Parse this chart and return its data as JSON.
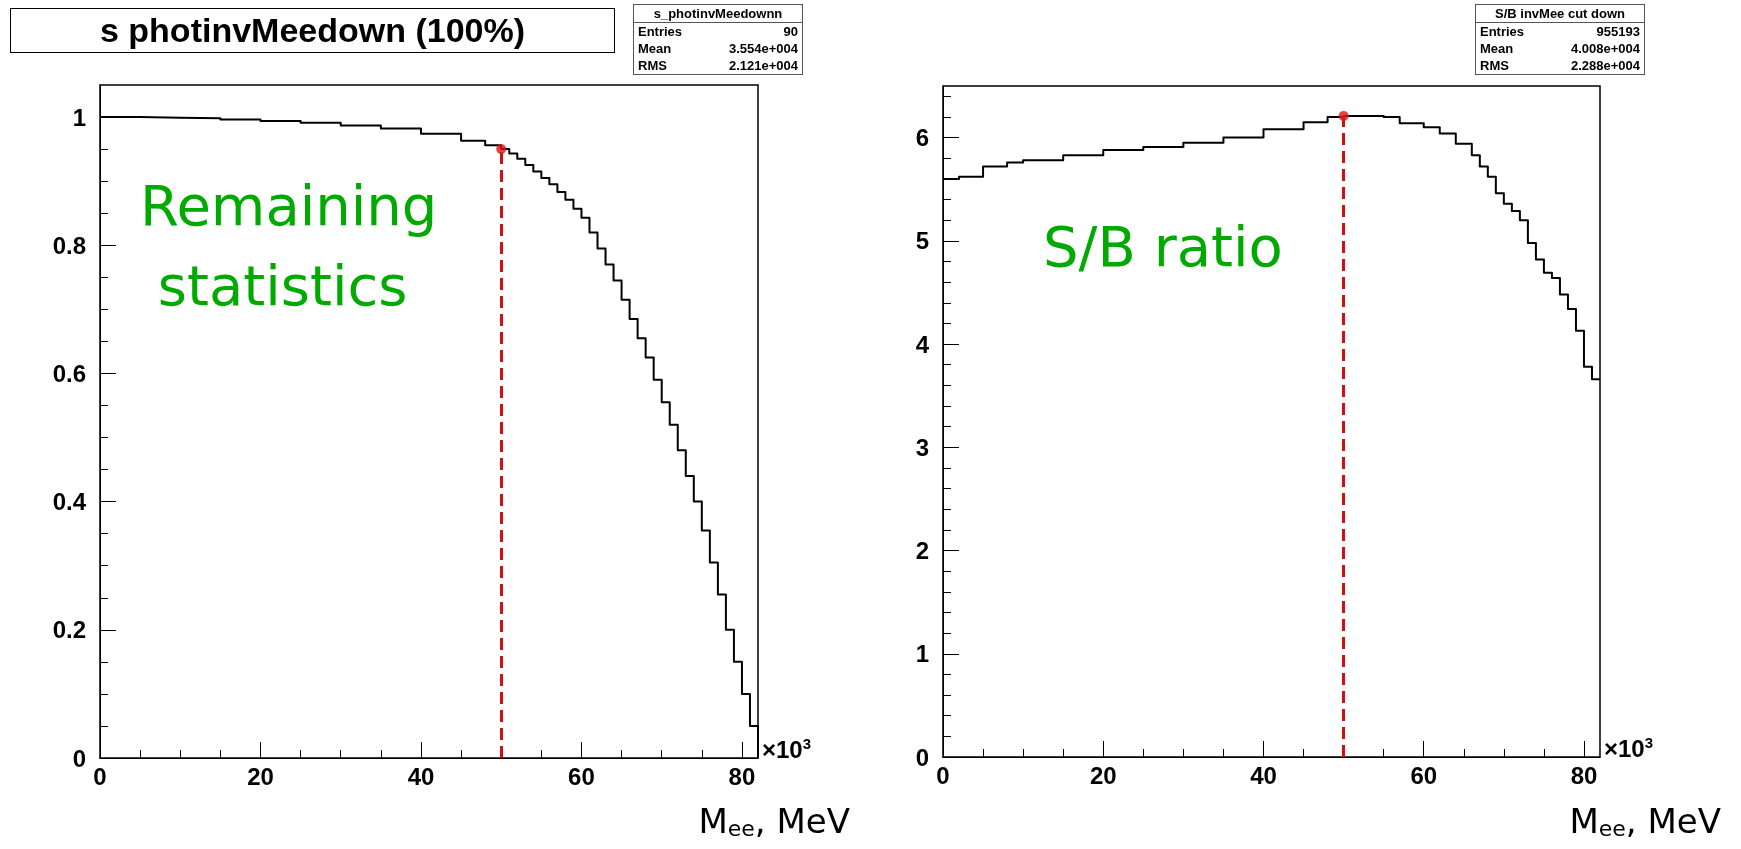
{
  "chart_data": [
    {
      "type": "step",
      "title": "s photinvMeedown (100%)",
      "xlabel": "M$_{ee}$, MeV",
      "xlim": [
        0,
        82
      ],
      "xticks": [
        0,
        20,
        40,
        60,
        80
      ],
      "ylim": [
        0,
        1.05
      ],
      "yticks": [
        0,
        0.2,
        0.4,
        0.6,
        0.8,
        1
      ],
      "series": [
        {
          "color": "#000000",
          "x": [
            0,
            5,
            10,
            15,
            20,
            25,
            30,
            35,
            40,
            45,
            48,
            50,
            51,
            52,
            53,
            54,
            55,
            56,
            57,
            58,
            59,
            60,
            61,
            62,
            63,
            64,
            65,
            66,
            67,
            68,
            69,
            70,
            71,
            72,
            73,
            74,
            75,
            76,
            77,
            78,
            79,
            80,
            81,
            82
          ],
          "values": [
            1.0,
            0.999,
            0.998,
            0.996,
            0.994,
            0.991,
            0.987,
            0.982,
            0.974,
            0.963,
            0.956,
            0.95,
            0.943,
            0.935,
            0.925,
            0.915,
            0.905,
            0.895,
            0.883,
            0.871,
            0.857,
            0.843,
            0.82,
            0.795,
            0.77,
            0.745,
            0.715,
            0.685,
            0.655,
            0.625,
            0.59,
            0.555,
            0.52,
            0.48,
            0.44,
            0.4,
            0.355,
            0.305,
            0.255,
            0.2,
            0.15,
            0.1,
            0.05,
            0
          ]
        },
        {
          "type": "scatter",
          "color": "#e01515",
          "x": [
            50
          ],
          "values": [
            0.95
          ]
        }
      ],
      "ref_lines": [
        {
          "axis": "x",
          "value": 50,
          "color": "#d01010",
          "line_style": "dashed"
        }
      ],
      "annotations": [
        "Remaining statistics",
        "×10$^{3}$",
        "s_photinvMeedownn",
        "Entries",
        "90",
        "Mean",
        "3.554e+004",
        "RMS",
        "2.121e+004"
      ]
    },
    {
      "type": "step",
      "xlabel": "M$_{ee}$, MeV",
      "xlim": [
        0,
        82
      ],
      "xticks": [
        0,
        20,
        40,
        60,
        80
      ],
      "ylim": [
        0,
        6.5
      ],
      "yticks": [
        0,
        1,
        2,
        3,
        4,
        5,
        6
      ],
      "series": [
        {
          "color": "#000000",
          "x": [
            0,
            2,
            5,
            8,
            10,
            15,
            20,
            25,
            30,
            35,
            40,
            45,
            48,
            50,
            52,
            55,
            57,
            60,
            62,
            64,
            66,
            67,
            68,
            69,
            70,
            71,
            72,
            73,
            74,
            75,
            76,
            77,
            78,
            79,
            80,
            81,
            82
          ],
          "values": [
            5.6,
            5.62,
            5.72,
            5.76,
            5.78,
            5.83,
            5.88,
            5.91,
            5.95,
            6.0,
            6.08,
            6.15,
            6.2,
            6.21,
            6.21,
            6.2,
            6.14,
            6.1,
            6.04,
            5.94,
            5.83,
            5.72,
            5.62,
            5.46,
            5.36,
            5.29,
            5.2,
            4.98,
            4.82,
            4.69,
            4.64,
            4.48,
            4.34,
            4.13,
            3.78,
            3.66,
            3.66
          ]
        },
        {
          "type": "scatter",
          "color": "#e01515",
          "x": [
            50
          ],
          "values": [
            6.21
          ]
        }
      ],
      "ref_lines": [
        {
          "axis": "x",
          "value": 50,
          "color": "#d01010",
          "line_style": "dashed"
        }
      ],
      "annotations": [
        "S/B ratio",
        "×10$^{3}$",
        "S/B invMee cut down",
        "Entries",
        "955193",
        "Mean",
        "4.008e+004",
        "RMS",
        "2.288e+004"
      ]
    }
  ]
}
